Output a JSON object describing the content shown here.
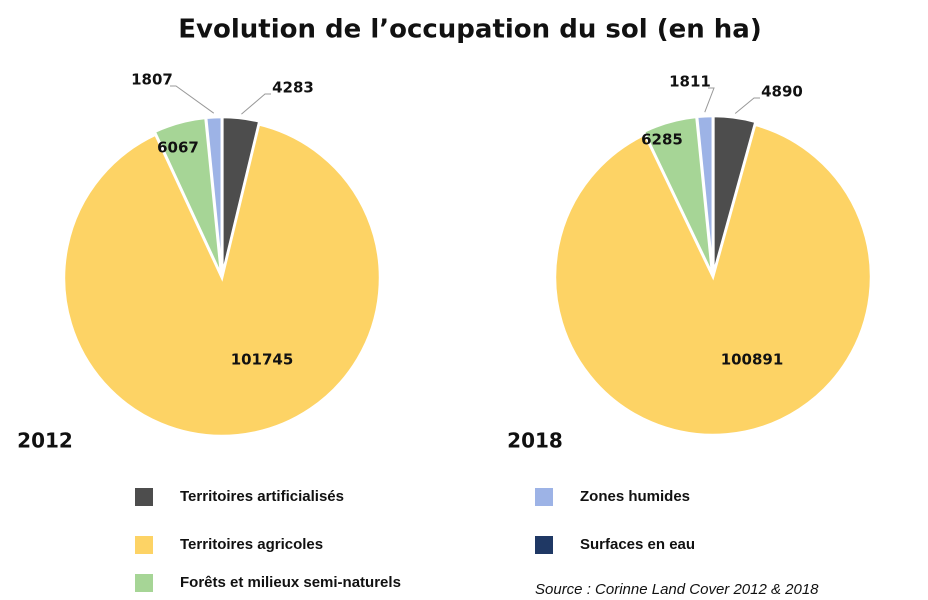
{
  "chart_data": [
    {
      "type": "pie",
      "label": "2012",
      "values": [
        4283,
        101745,
        6067,
        1807,
        0
      ]
    },
    {
      "type": "pie",
      "label": "2018",
      "values": [
        4890,
        100891,
        6285,
        1811,
        0
      ]
    }
  ],
  "title": "Evolution de l’occupation du sol (en ha)",
  "categories": [
    "Territoires artificialisés",
    "Territoires agricoles",
    "Forêts et milieux semi-naturels",
    "Zones humides",
    "Surfaces en eau"
  ],
  "colors": [
    "#4d4d4d",
    "#fdd365",
    "#a6d596",
    "#9db3e6",
    "#1f3864"
  ],
  "source": "Source : Corinne Land Cover 2012 & 2018"
}
